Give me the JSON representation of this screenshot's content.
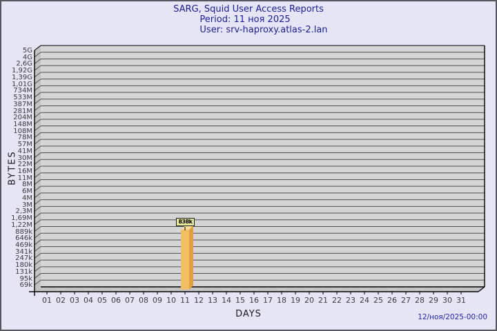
{
  "title": {
    "line1": "SARG, Squid User Access Reports",
    "line2": "Period: 11 ноя 2025",
    "line3": "User: srv-haproxy.atlas-2.lan"
  },
  "footer": {
    "timestamp": "12/ноя/2025-00:00"
  },
  "chart_data": {
    "type": "bar",
    "title": "SARG, Squid User Access Reports",
    "subtitle_period": "Period: 11 ноя 2025",
    "subtitle_user": "User: srv-haproxy.atlas-2.lan",
    "xlabel": "DAYS",
    "ylabel": "BYTES",
    "x_ticks": [
      "01",
      "02",
      "03",
      "04",
      "05",
      "06",
      "07",
      "08",
      "09",
      "10",
      "11",
      "12",
      "13",
      "14",
      "15",
      "16",
      "17",
      "18",
      "19",
      "20",
      "21",
      "22",
      "23",
      "24",
      "25",
      "26",
      "27",
      "28",
      "29",
      "30",
      "31"
    ],
    "y_ticks": [
      "5G",
      "4G",
      "2,6G",
      "1,92G",
      "1,39G",
      "1,01G",
      "734M",
      "533M",
      "387M",
      "281M",
      "204M",
      "148M",
      "108M",
      "78M",
      "57M",
      "41M",
      "30M",
      "22M",
      "16M",
      "11M",
      "8M",
      "6M",
      "4M",
      "3M",
      "2,3M",
      "1,69M",
      "1,22M",
      "889k",
      "646k",
      "469k",
      "341k",
      "247k",
      "180k",
      "131k",
      "95k",
      "69k"
    ],
    "y_scale": "log-like",
    "grid": true,
    "legend": "none",
    "values_bytes": [
      0,
      0,
      0,
      0,
      0,
      0,
      0,
      0,
      0,
      0,
      838000,
      0,
      0,
      0,
      0,
      0,
      0,
      0,
      0,
      0,
      0,
      0,
      0,
      0,
      0,
      0,
      0,
      0,
      0,
      0,
      0
    ],
    "bars": [
      {
        "day": "11",
        "label": "838k",
        "value_bytes": 838000
      }
    ],
    "colors": {
      "page_bg": "#E5E5F6",
      "frame": "#56565E",
      "plot_bg": "#D5D5D5",
      "wall": "#C3C3C3",
      "grid": "#4F4F4F",
      "axis": "#000000",
      "title_text": "#1B1B9B",
      "tick_text": "#3A3A3A",
      "timestamp_text": "#2323BE",
      "bar_front": "#F2BE62",
      "bar_side": "#E39E41",
      "bar_top": "#F9DC96",
      "value_box_bg": "#EBEB9E"
    }
  }
}
